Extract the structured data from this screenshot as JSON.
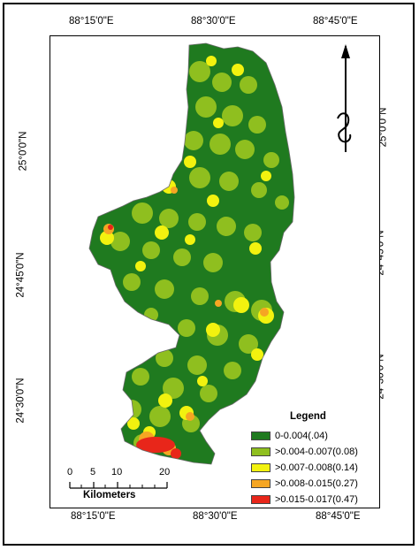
{
  "map": {
    "coords": {
      "top": [
        "88°15'0\"E",
        "88°30'0\"E",
        "88°45'0\"E"
      ],
      "bottom": [
        "88°15'0\"E",
        "88°30'0\"E",
        "88°45'0\"E"
      ],
      "left": [
        "25°0'0\"N",
        "24°45'0\"N",
        "24°30'0\"N"
      ],
      "right": [
        "25°0'0\"N",
        "24°45'0\"N",
        "24°30'0\"N"
      ]
    },
    "legend": {
      "title": "Legend",
      "items": [
        {
          "label": "0-0.004(.04)",
          "color": "#1f7a1f"
        },
        {
          "label": ">0.004-0.007(0.08)",
          "color": "#8fbf1f"
        },
        {
          "label": ">0.007-0.008(0.14)",
          "color": "#f2f20f"
        },
        {
          "label": ">0.008-0.015(0.27)",
          "color": "#f5a623"
        },
        {
          "label": ">0.015-0.017(0.47)",
          "color": "#e8261a"
        }
      ]
    },
    "scale": {
      "ticks": [
        "0",
        "5",
        "10",
        "20"
      ],
      "unit": "Kilometers"
    },
    "north_arrow": "north-arrow-icon"
  }
}
